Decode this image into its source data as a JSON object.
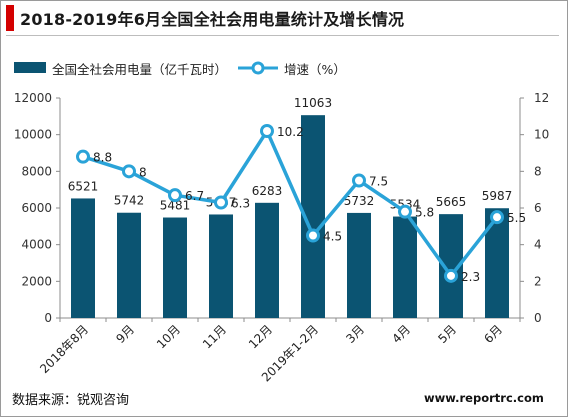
{
  "title": "2018-2019年6月全国全社会用电量统计及增长情况",
  "source": "数据来源：锐观咨询",
  "watermark": "www.reportrc.com",
  "colors": {
    "bar": "#0b5472",
    "line": "#2aa3d8",
    "accent": "#d40000"
  },
  "chart_data": {
    "type": "bar",
    "categories": [
      "2018年8月",
      "9月",
      "10月",
      "11月",
      "12月",
      "2019年1-2月",
      "3月",
      "4月",
      "5月",
      "6月"
    ],
    "series": [
      {
        "name": "全国全社会用电量（亿千瓦时）",
        "type": "bar",
        "axis": "left",
        "values": [
          6521,
          5742,
          5481,
          5647,
          6283,
          11063,
          5732,
          5534,
          5665,
          5987
        ]
      },
      {
        "name": "增速（%）",
        "type": "line",
        "axis": "right",
        "values": [
          8.8,
          8,
          6.7,
          6.3,
          10.2,
          4.5,
          7.5,
          5.8,
          2.3,
          5.5
        ]
      }
    ],
    "y_left": {
      "min": 0,
      "max": 12000,
      "ticks": [
        0,
        2000,
        4000,
        6000,
        8000,
        10000,
        12000
      ]
    },
    "y_right": {
      "min": 0,
      "max": 12,
      "ticks": [
        0,
        2,
        4,
        6,
        8,
        10,
        12
      ]
    },
    "grid": false,
    "legend": "top-left"
  }
}
